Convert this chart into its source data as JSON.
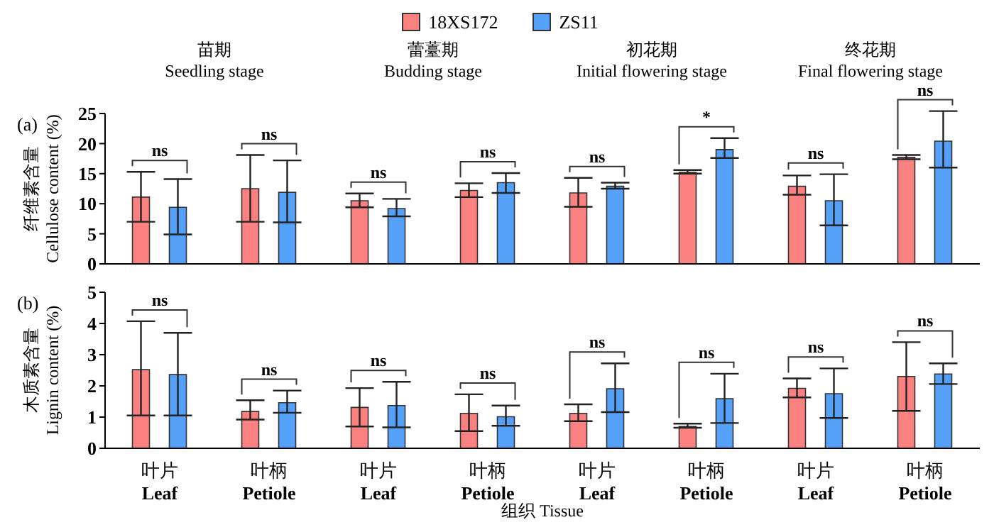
{
  "chart_data": [
    {
      "type": "bar",
      "categories": [
        null,
        null,
        null,
        null,
        null,
        null,
        null,
        null
      ],
      "ylabel": "纤维素含量\nCellulose content (%)",
      "ylim": [
        0,
        25
      ],
      "yticks": [
        0,
        5,
        10,
        15,
        20,
        25
      ],
      "tick_labels": "y",
      "legend": "top",
      "grid": false,
      "annotations": [
        "(a)",
        "苗期\nSeedling stage",
        "蕾薹期\nBudding stage",
        "初花期\nInitial flowering stage",
        "终花期\nFinal flowering stage",
        "ns",
        "ns",
        "ns",
        "ns",
        "ns",
        "*",
        "ns",
        "ns"
      ],
      "series": [
        {
          "name": "18XS172",
          "color": "#fb8080",
          "values": [
            11.1,
            12.5,
            10.5,
            12.2,
            11.8,
            15.2,
            12.9,
            17.7
          ],
          "errors": [
            [
              7,
              15.3
            ],
            [
              7,
              18.1
            ],
            [
              9.4,
              11.7
            ],
            [
              11.1,
              13.4
            ],
            [
              9.5,
              14.3
            ],
            [
              15,
              15.6
            ],
            [
              11.5,
              14.7
            ],
            [
              17.4,
              18.1
            ]
          ]
        },
        {
          "name": "ZS11",
          "color": "#55a0f8",
          "values": [
            9.4,
            11.9,
            9.2,
            13.5,
            12.9,
            19.0,
            10.5,
            20.4
          ],
          "errors": [
            [
              4.9,
              14.1
            ],
            [
              6.9,
              17.2
            ],
            [
              7.9,
              10.8
            ],
            [
              11.8,
              15.1
            ],
            [
              12.5,
              13.5
            ],
            [
              17.6,
              20.9
            ],
            [
              6.4,
              14.9
            ],
            [
              16,
              25.4
            ]
          ]
        }
      ]
    },
    {
      "type": "bar",
      "categories": [
        "叶片\nLeaf",
        "叶柄\nPetiole",
        "叶片\nLeaf",
        "叶柄\nPetiole",
        "叶片\nLeaf",
        "叶柄\nPetiole",
        "叶片\nLeaf",
        "叶柄\nPetiole"
      ],
      "xlabel": "组织 Tissue",
      "ylabel": "木质素含量\nLignin content (%)",
      "ylim": [
        0,
        5
      ],
      "yticks": [
        0,
        1,
        2,
        3,
        4,
        5
      ],
      "grid": false,
      "annotations": [
        "(b)",
        "ns",
        "ns",
        "ns",
        "ns",
        "ns",
        "ns",
        "ns",
        "ns"
      ],
      "series": [
        {
          "color": "#fb8080",
          "values": [
            2.52,
            1.18,
            1.31,
            1.12,
            1.12,
            0.7,
            1.92,
            2.3
          ],
          "errors": [
            [
              1.05,
              4.07
            ],
            [
              0.92,
              1.54
            ],
            [
              0.7,
              1.93
            ],
            [
              0.55,
              1.73
            ],
            [
              0.87,
              1.41
            ],
            [
              0.66,
              0.79
            ],
            [
              1.63,
              2.24
            ],
            [
              1.2,
              3.4
            ]
          ]
        },
        {
          "color": "#55a0f8",
          "values": [
            2.36,
            1.46,
            1.37,
            1.01,
            1.91,
            1.59,
            1.75,
            2.38
          ],
          "errors": [
            [
              1.05,
              3.7
            ],
            [
              1.14,
              1.85
            ],
            [
              0.67,
              2.13
            ],
            [
              0.72,
              1.37
            ],
            [
              1.16,
              2.72
            ],
            [
              0.81,
              2.39
            ],
            [
              0.97,
              2.56
            ],
            [
              2.06,
              2.72
            ]
          ]
        }
      ]
    }
  ]
}
